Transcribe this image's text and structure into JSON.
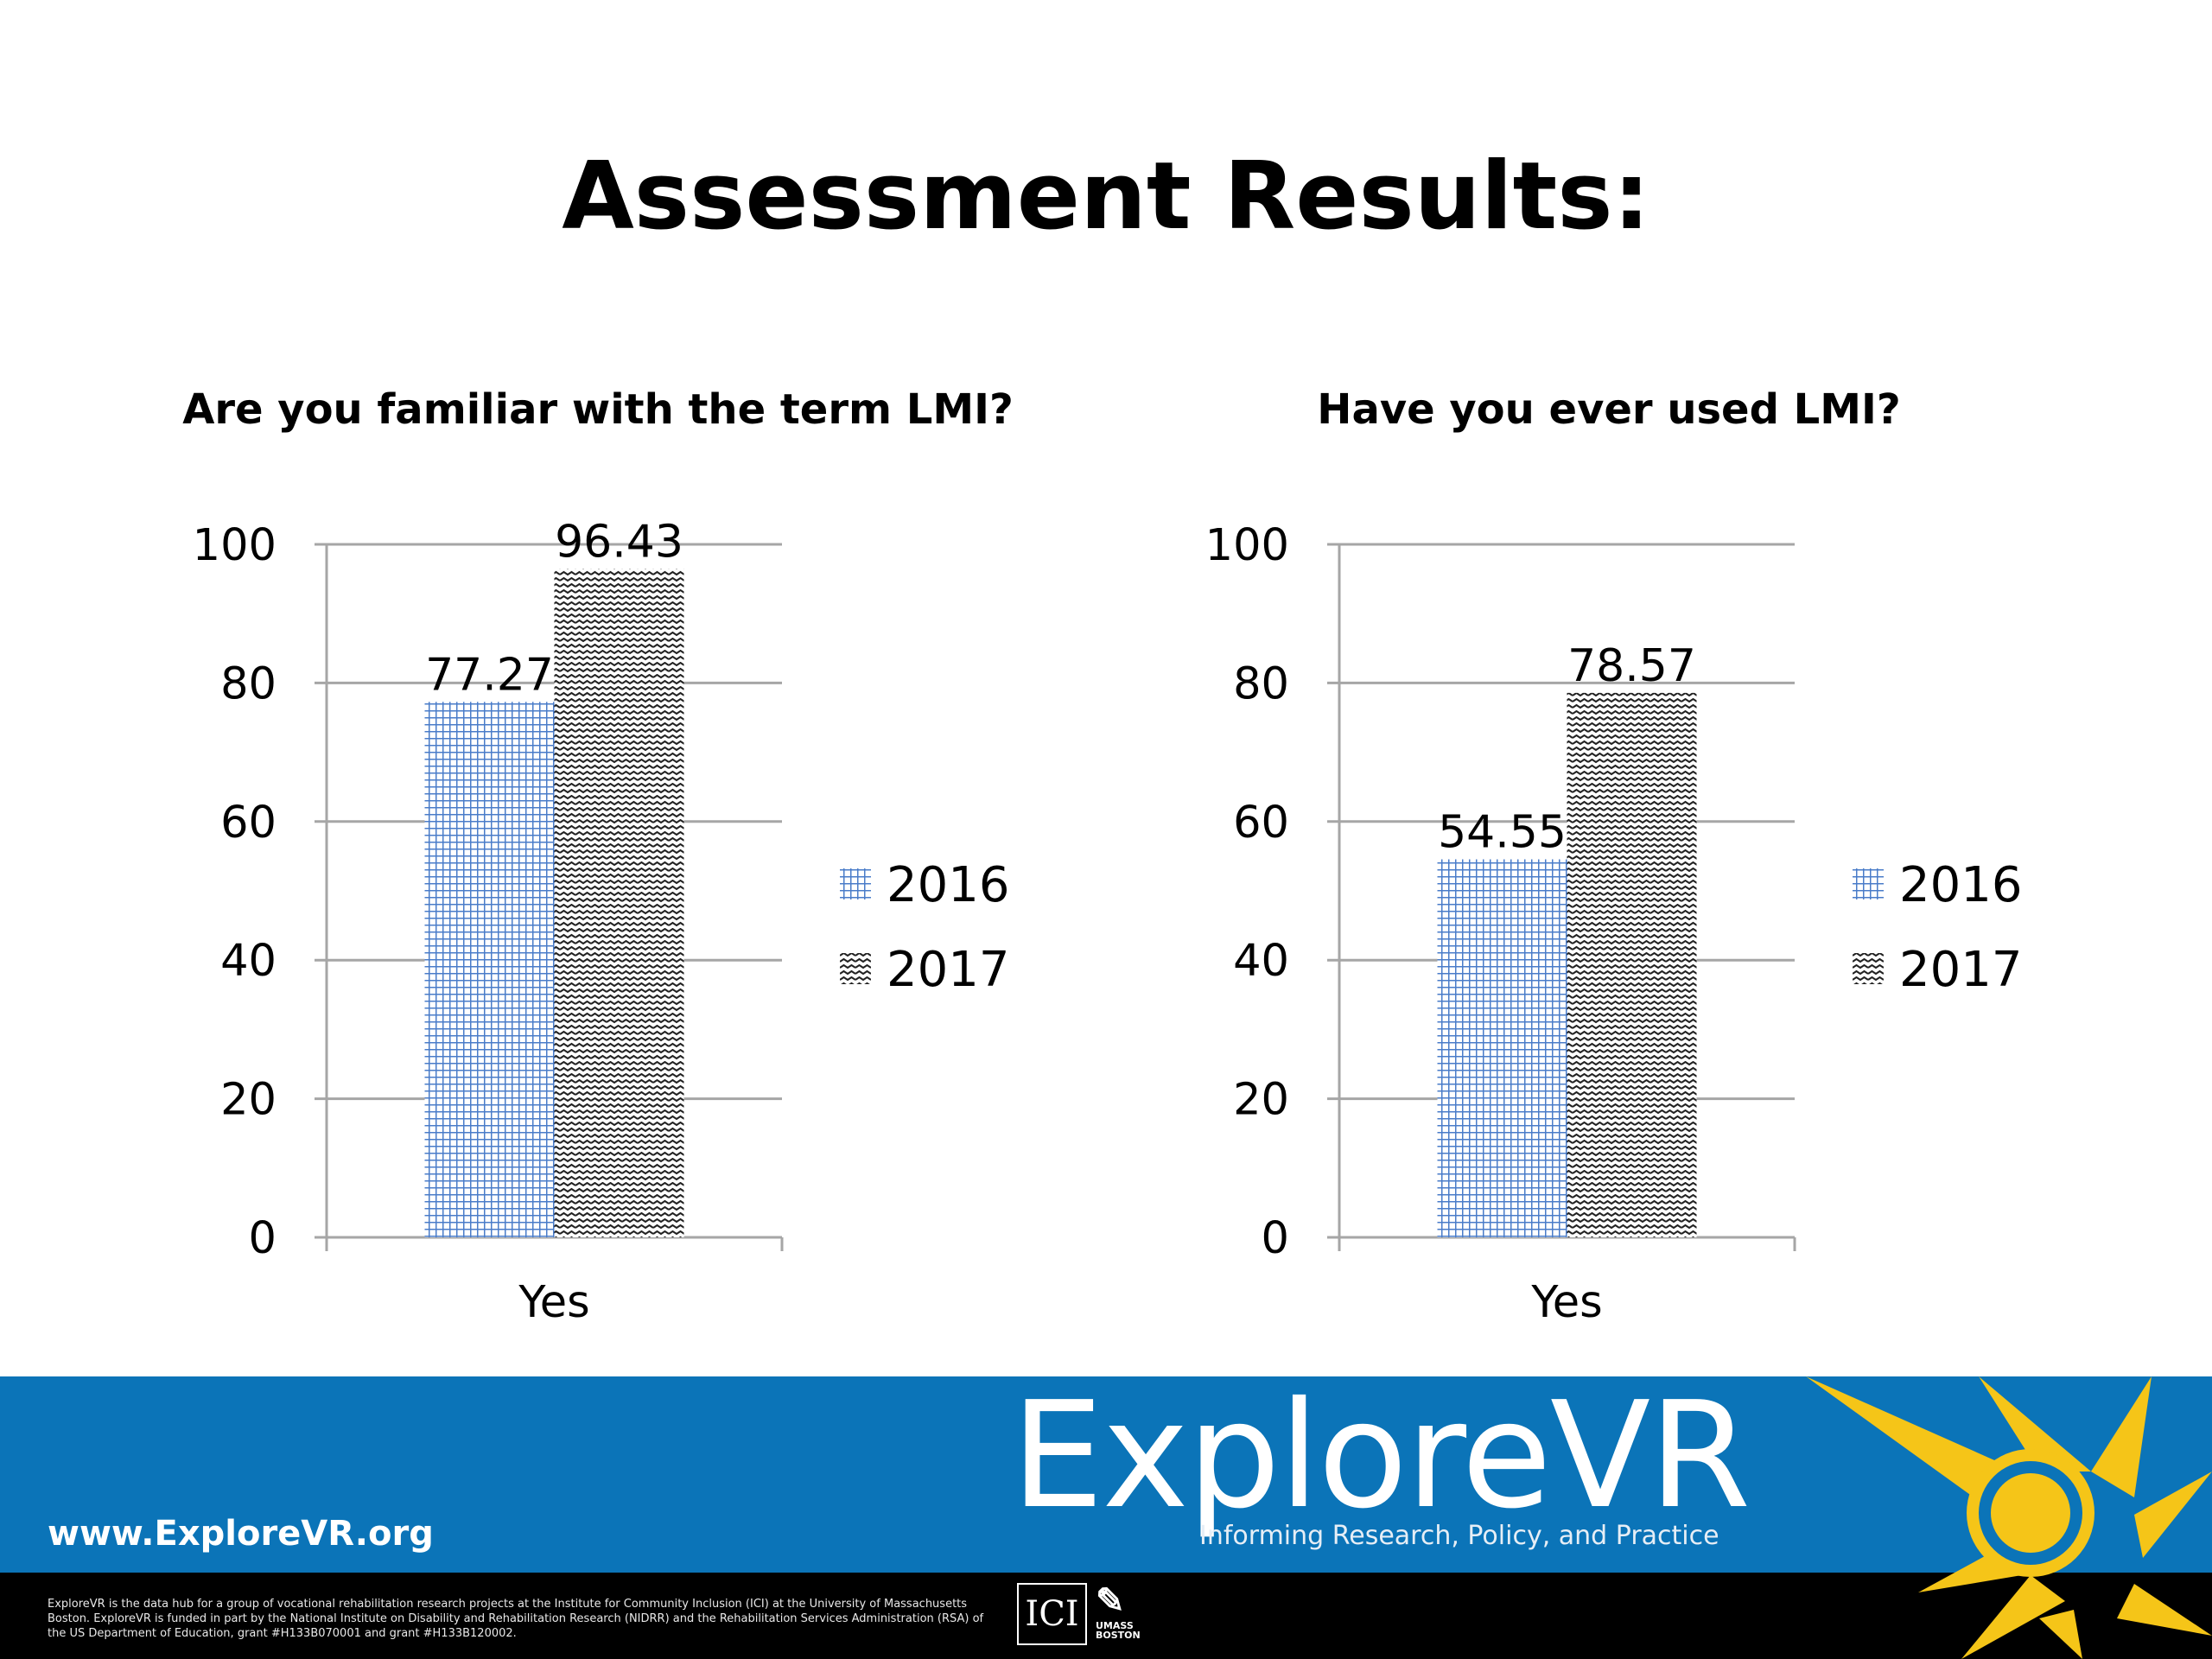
{
  "slide": {
    "title": "Assessment Results:"
  },
  "chart_data": [
    {
      "type": "bar",
      "title": "Are you familiar with the term LMI?",
      "categories": [
        "Yes"
      ],
      "series": [
        {
          "name": "2016",
          "values": [
            77.27
          ],
          "labels": [
            "77.27"
          ],
          "pattern": "grid",
          "color": "#4a7cc9"
        },
        {
          "name": "2017",
          "values": [
            96.43
          ],
          "labels": [
            "96.43"
          ],
          "pattern": "wave",
          "color": "#222222"
        }
      ],
      "ylim": [
        0,
        100
      ],
      "yticks": [
        "0",
        "20",
        "40",
        "60",
        "80",
        "100"
      ],
      "grid": true,
      "legend": "right"
    },
    {
      "type": "bar",
      "title": "Have you ever used LMI?",
      "categories": [
        "Yes"
      ],
      "series": [
        {
          "name": "2016",
          "values": [
            54.55
          ],
          "labels": [
            "54.55"
          ],
          "pattern": "grid",
          "color": "#4a7cc9"
        },
        {
          "name": "2017",
          "values": [
            78.57
          ],
          "labels": [
            "78.57"
          ],
          "pattern": "wave",
          "color": "#222222"
        }
      ],
      "ylim": [
        0,
        100
      ],
      "yticks": [
        "0",
        "20",
        "40",
        "60",
        "80",
        "100"
      ],
      "grid": true,
      "legend": "right"
    }
  ],
  "footer": {
    "url": "www.ExploreVR.org",
    "brand": "ExploreVR",
    "tagline": "Informing Research, Policy, and Practice",
    "disclaimer": "ExploreVR is the data hub for a group of vocational rehabilitation research projects at the Institute for Community Inclusion (ICI) at the University of Massachusetts Boston. ExploreVR is funded in part by the National Institute on Disability and Rehabilitation Research (NIDRR) and the Rehabilitation Services Administration (RSA) of the US Department of Education, grant #H133B070001 and grant #H133B120002.",
    "ici_logo": "ICI",
    "umass_logo": "UMASS BOSTON",
    "colors": {
      "band": "#0b74b8",
      "sun": "#f5c518",
      "base": "#000000"
    }
  }
}
